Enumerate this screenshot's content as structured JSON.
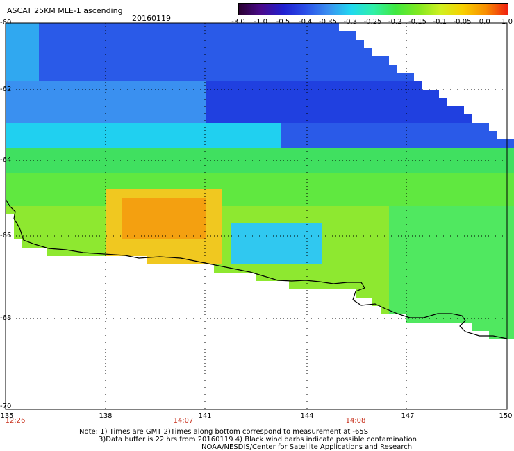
{
  "header": {
    "title": "ASCAT 25KM MLE-1 ascending",
    "date": "20160119"
  },
  "colorbar": {
    "ticks": [
      "-3.0",
      "-1.0",
      "-0.5",
      "-0.4",
      "-0.35",
      "-0.3",
      "-0.25",
      "-0.2",
      "-0.15",
      "-0.1",
      "-0.05",
      "0.0",
      "1.0"
    ],
    "colors": [
      "#2a0030",
      "#4a0a8c",
      "#2020d0",
      "#2a50e8",
      "#3a90f0",
      "#20d8f0",
      "#30f0a8",
      "#40e840",
      "#80e820",
      "#d0f020",
      "#f8d000",
      "#f89000",
      "#f02010"
    ]
  },
  "map": {
    "lat_labels": [
      "-60",
      "-62",
      "-64",
      "-66",
      "-68",
      "-70"
    ],
    "lon_labels": [
      "135",
      "138",
      "141",
      "144",
      "147",
      "150"
    ],
    "time_labels": [
      "12:26",
      "14:07",
      "14:08"
    ]
  },
  "notes": {
    "line1": "Note: 1) Times are GMT 2)Times along bottom correspond to measurement at -65S",
    "line2": "3)Data buffer is 22 hrs from 20160119 4) Black wind barbs indicate possible contamination",
    "line3": "NOAA/NESDIS/Center for Satellite Applications and Research"
  }
}
